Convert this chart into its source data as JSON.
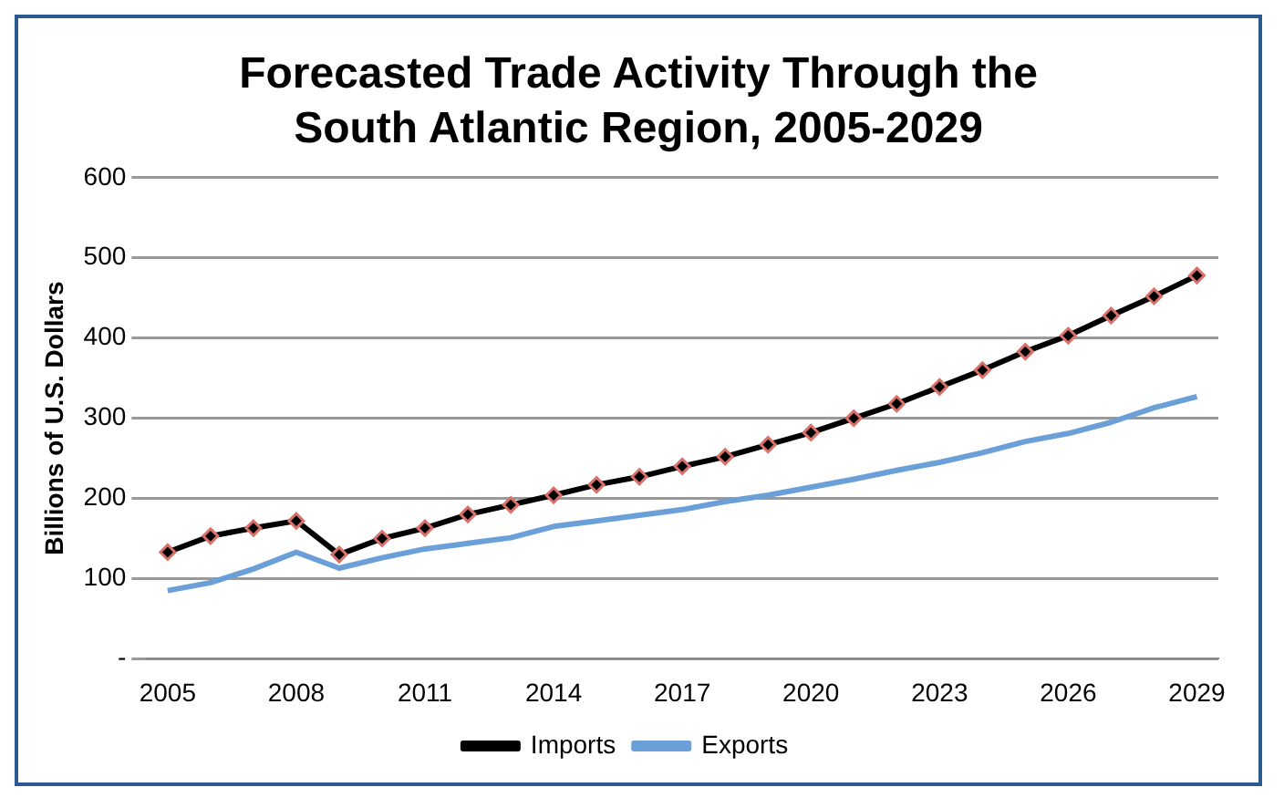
{
  "chart_data": {
    "type": "line",
    "title": "Forecasted Trade Activity Through the South Atlantic Region, 2005-2029",
    "ylabel": "Billions of U.S. Dollars",
    "categories": [
      "2005",
      null,
      null,
      "2008",
      null,
      null,
      "2011",
      null,
      null,
      "2014",
      null,
      null,
      "2017",
      null,
      null,
      "2020",
      null,
      null,
      "2023",
      null,
      null,
      "2026",
      null,
      null,
      "2029"
    ],
    "series": [
      {
        "name": "Imports",
        "color": "#000000",
        "marker": "diamond",
        "values": [
          133,
          153,
          163,
          172,
          130,
          150,
          163,
          180,
          192,
          204,
          217,
          227,
          240,
          252,
          267,
          282,
          300,
          318,
          339,
          360,
          383,
          403,
          428,
          452,
          478
        ]
      },
      {
        "name": "Exports",
        "color": "#6a9fd8",
        "marker": "none",
        "values": [
          85,
          95,
          112,
          133,
          113,
          126,
          137,
          144,
          151,
          165,
          172,
          179,
          186,
          196,
          204,
          214,
          224,
          235,
          245,
          257,
          271,
          281,
          295,
          313,
          327
        ]
      }
    ],
    "ylim": [
      0,
      600
    ],
    "yticks": [
      {
        "value": 0,
        "label": "-"
      },
      100,
      200,
      300,
      400,
      500,
      600
    ],
    "grid": "y",
    "legend": "bottom",
    "line_style": "solid"
  }
}
